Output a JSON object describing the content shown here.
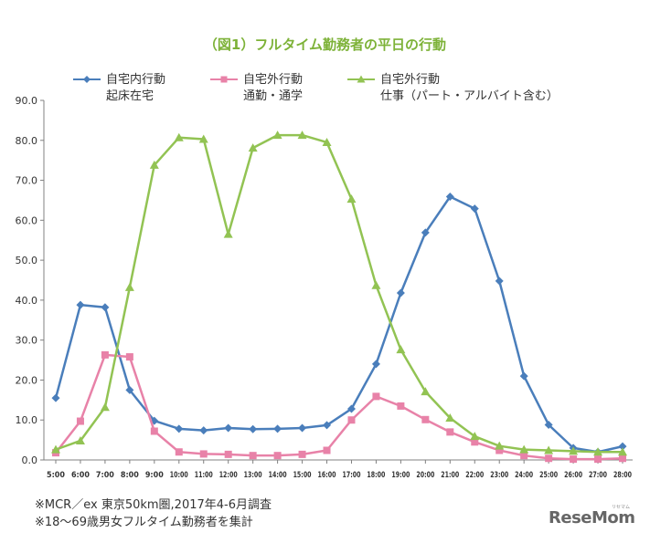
{
  "chart_data": {
    "type": "line",
    "title": "（図1）フルタイム勤務者の平日の行動",
    "categories": [
      "5:00",
      "6:00",
      "7:00",
      "8:00",
      "9:00",
      "10:00",
      "11:00",
      "12:00",
      "13:00",
      "14:00",
      "15:00",
      "16:00",
      "17:00",
      "18:00",
      "19:00",
      "20:00",
      "21:00",
      "22:00",
      "23:00",
      "24:00",
      "25:00",
      "26:00",
      "27:00",
      "28:00"
    ],
    "ylim": [
      0,
      90
    ],
    "yticks": [
      "0.0",
      "10.0",
      "20.0",
      "30.0",
      "40.0",
      "50.0",
      "60.0",
      "70.0",
      "80.0",
      "90.0"
    ],
    "grid": false,
    "legend_position": "top",
    "series": [
      {
        "name_line1": "自宅内行動",
        "name_line2": "起床在宅",
        "color": "#4a7ebb",
        "marker": "diamond",
        "values": [
          15.5,
          38.8,
          38.2,
          17.5,
          9.8,
          7.8,
          7.4,
          8.0,
          7.7,
          7.8,
          8.0,
          8.7,
          12.8,
          24.0,
          41.8,
          56.9,
          65.9,
          62.9,
          44.8,
          21.0,
          8.8,
          3.0,
          2.0,
          3.4
        ]
      },
      {
        "name_line1": "自宅外行動",
        "name_line2": "通勤・通学",
        "color": "#e882a8",
        "marker": "square",
        "values": [
          1.8,
          9.7,
          26.3,
          25.8,
          7.2,
          2.0,
          1.5,
          1.4,
          1.1,
          1.1,
          1.4,
          2.4,
          10.0,
          15.9,
          13.5,
          10.1,
          7.0,
          4.5,
          2.4,
          1.1,
          0.4,
          0.2,
          0.2,
          0.4
        ]
      },
      {
        "name_line1": "自宅外行動",
        "name_line2": "仕事（パート・アルバイト含む）",
        "color": "#92c353",
        "marker": "triangle",
        "values": [
          2.6,
          4.8,
          13.2,
          43.2,
          73.8,
          80.7,
          80.3,
          56.5,
          78.1,
          81.3,
          81.3,
          79.5,
          65.3,
          43.7,
          27.6,
          17.1,
          10.5,
          5.9,
          3.5,
          2.6,
          2.4,
          2.2,
          2.0,
          2.0
        ]
      }
    ]
  },
  "notes": [
    "※MCR／ex 東京50km圏,2017年4-6月調査",
    "※18〜69歳男女フルタイム勤務者を集計"
  ],
  "brand": {
    "text": "ReseMom",
    "sub": "リセマム"
  },
  "colors": {
    "title": "#7db238",
    "axis": "#808080",
    "text": "#333333"
  }
}
